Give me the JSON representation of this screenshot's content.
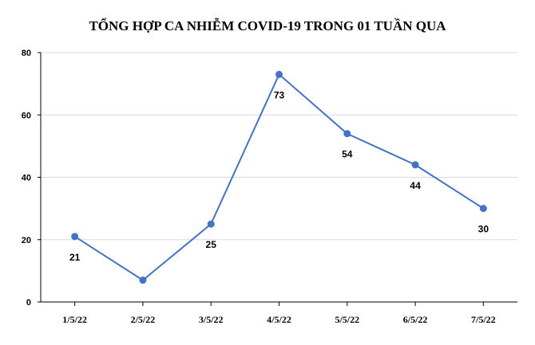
{
  "chart_data": {
    "type": "line",
    "title": "TỔNG HỢP CA NHIỄM COVID-19 TRONG 01 TUẦN QUA",
    "xlabel": "",
    "ylabel": "",
    "categories": [
      "1/5/22",
      "2/5/22",
      "3/5/22",
      "4/5/22",
      "5/5/22",
      "6/5/22",
      "7/5/22"
    ],
    "series": [
      {
        "values": [
          21,
          7,
          25,
          73,
          54,
          44,
          30
        ],
        "data_labels": [
          "21",
          "",
          "25",
          "73",
          "54",
          "44",
          "30"
        ],
        "color": "#4472c4"
      }
    ],
    "ylim": [
      0,
      80
    ],
    "y_ticks": [
      0,
      20,
      40,
      60,
      80
    ],
    "y_tick_labels": [
      "0",
      "20",
      "40",
      "60",
      "80"
    ],
    "grid": true,
    "legend": "none"
  }
}
